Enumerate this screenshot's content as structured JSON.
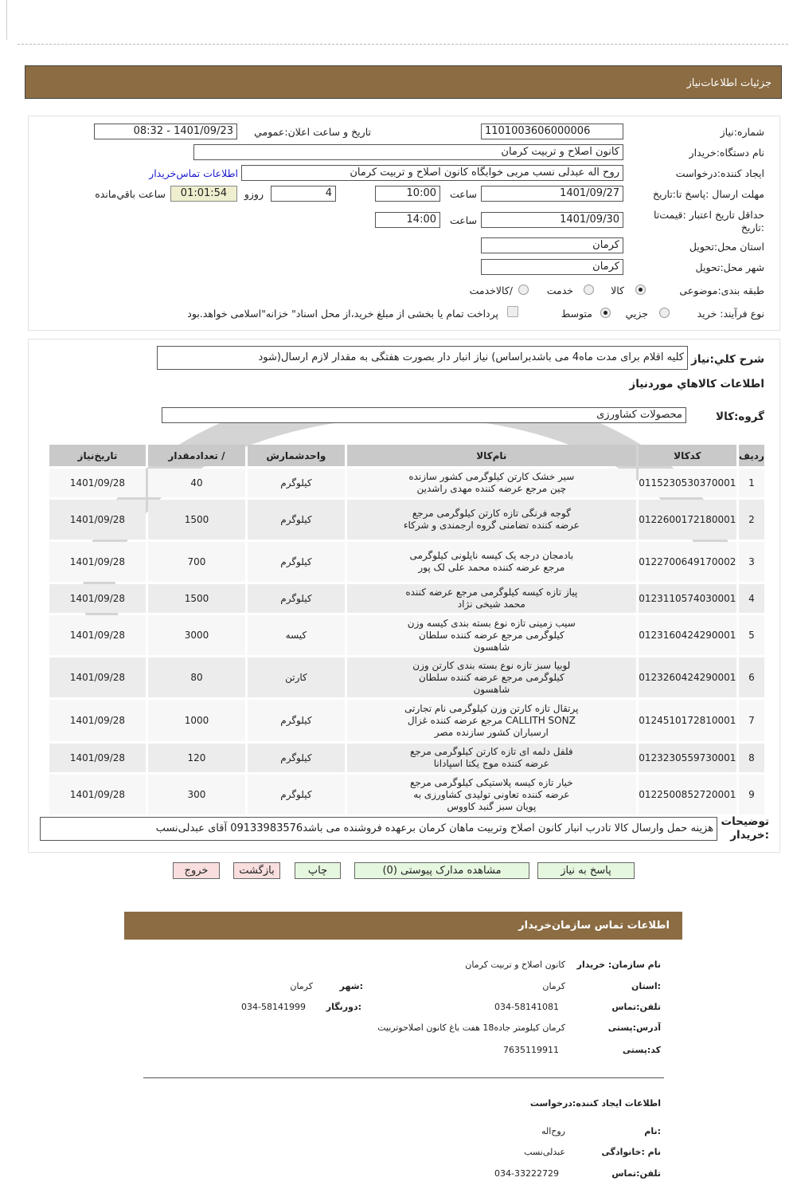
{
  "header": {
    "title": "جزئیات   اطلاعات‌نیاز"
  },
  "form": {
    "need_number_label": "شماره‌:نیاز",
    "need_number": "1101003606000006",
    "announce_label": "تاریخ و ساعت اعلان:عمومي",
    "announce_value": "1401/09/23 - 08:32",
    "buyer_label": "نام دستگاه:خریدار",
    "buyer": "کانون اصلاح و تربیت کرمان",
    "creator_label": "ایجاد کننده:درخواست",
    "creator": "روح اله عبدلی نسب مربی خوابگاه کانون اصلاح و تربیت کرمان",
    "contact_link": "اطلاعات تماس‌خریدار",
    "deadline_label": "مهلت ارسال :پاسخ تا:تاریخ",
    "deadline_date": "1401/09/27",
    "hour_label": "ساعت",
    "deadline_time": "10:00",
    "days": "4",
    "days_label": "روزو",
    "remaining": "01:01:54",
    "remaining_label": "ساعت باقي‌مانده",
    "validity_label": "حداقل تاریخ اعتبار :قیمت‌تا :تاریخ",
    "validity_date": "1401/09/30",
    "validity_time": "14:00",
    "province_label": "استان محل:تحویل",
    "province": "کرمان",
    "city_label": "شهر محل:تحویل",
    "city": "کرمان",
    "category_label": "طبقه بندی:موضوعی",
    "category_options": [
      "کالا",
      "خدمت",
      "/کالاخدمت"
    ],
    "category_selected": "کالا",
    "process_label": "نوع فرآیند: خرید",
    "process_options": [
      "جزيي",
      "متوسط"
    ],
    "process_selected": "متوسط",
    "payment_note": "پرداخت تمام یا بخشی از مبلغ خرید،از محل اسناد\" خزانه\"اسلامی خواهد.بود"
  },
  "summary": {
    "label": "شرح کلي:نیاز",
    "text": "کلیه اقلام برای مدت ماه4 می باشدبراساس) نیاز انبار دار بصورت هفتگی به مقدار لازم ارسال(شود"
  },
  "goods_title": "اطلاعات کالاهاي مورد‌نیاز",
  "group": {
    "label": "گروه:کالا",
    "value": "محصولات کشاورزی"
  },
  "table": {
    "headers": [
      "ردیف",
      "کدکالا",
      "نام‌کالا",
      "واحدشمارش",
      "/ تعدادمقدار",
      "تاریخ‌نیاز"
    ],
    "rows": [
      [
        "1",
        "0115230530370001",
        "سیر خشک کارتن کیلوگرمی کشور سازنده چین مرجع عرضه کننده مهدی راشدین",
        "کیلوگرم",
        "40",
        "1401/09/28"
      ],
      [
        "2",
        "0122600172180001",
        "گوجه فرنگی تازه کارتن کیلوگرمی مرجع عرضه کننده تضامنی گروه ارجمندی و شرکاء",
        "کیلوگرم",
        "1500",
        "1401/09/28"
      ],
      [
        "3",
        "0122700649170002",
        "بادمجان درجه یک کیسه نایلونی کیلوگرمی مرجع عرضه کننده محمد علی لک پور",
        "کیلوگرم",
        "700",
        "1401/09/28"
      ],
      [
        "4",
        "0123110574030001",
        "پیاز تازه کیسه کیلوگرمی مرجع عرضه کننده محمد شیخی نژاد",
        "کیلوگرم",
        "1500",
        "1401/09/28"
      ],
      [
        "5",
        "0123160424290001",
        "سیب زمینی تازه نوع بسته بندی کیسه وزن کیلوگرمی مرجع عرضه کننده سلطان شاهسون",
        "کیسه",
        "3000",
        "1401/09/28"
      ],
      [
        "6",
        "0123260424290001",
        "لوبیا سبز تازه نوع بسته بندی کارتن وزن کیلوگرمی مرجع عرضه کننده سلطان شاهسون",
        "کارتن",
        "80",
        "1401/09/28"
      ],
      [
        "7",
        "0124510172810001",
        "پرتقال تازه کارتن وزن کیلوگرمی نام تجارتی CALLITH SONZ مرجع عرضه کننده غزال ارسباران کشور سازنده مصر",
        "کیلوگرم",
        "1000",
        "1401/09/28"
      ],
      [
        "8",
        "0123230559730001",
        "فلفل دلمه ای تازه کارتن کیلوگرمی مرجع عرضه کننده موج یکتا اسپادانا",
        "کیلوگرم",
        "120",
        "1401/09/28"
      ],
      [
        "9",
        "0122500852720001",
        "خیار تازه کیسه پلاستیکی کیلوگرمی مرجع عرضه کننده تعاونی تولیدی کشاورزی به پویان سبز گنبد کاووس",
        "کیلوگرم",
        "300",
        "1401/09/28"
      ]
    ]
  },
  "buyer_notes": {
    "label": "توضیحات :خریدار",
    "text": "هزینه حمل وارسال کالا تادرب انبار کانون اصلاح وتربیت ماهان کرمان برعهده فروشنده می باشد09133983576 آقای عبدلی‌نسب"
  },
  "buttons": {
    "reply": "پاسخ به نیاز",
    "docs": "مشاهده مدارک پیوستی (0)",
    "print": "چاپ",
    "back": "بازگشت",
    "exit": "خروج"
  },
  "contact": {
    "title": "اطلاعات   تماس سازمان‌خریدار",
    "org_label": "نام سازمان: خریدار",
    "org": "کانون اصلاح و تربیت کرمان",
    "province_label": ":استان",
    "province": "کرمان",
    "city_label": ":شهر",
    "city": "کرمان",
    "phone_label": "تلفن:تماس",
    "phone": "034-58141081",
    "fax_label": ":دورنگار",
    "fax": "034-58141999",
    "address_label": "آدرس:پستی",
    "address": "کرمان کیلومتر  جاده18 هفت باغ کانون اصلاحوتربیت",
    "postal_label": "کد:پستی",
    "postal": "7635119911",
    "creator_title": "اطلاعات  ایجاد کننده:درخواست",
    "name_label": ":نام",
    "name": "روح‌اله",
    "family_label": "نام :خانوادگی",
    "family": "عبدلی‌نسب",
    "cphone_label": "تلفن:تماس",
    "cphone": "034-33222729"
  }
}
